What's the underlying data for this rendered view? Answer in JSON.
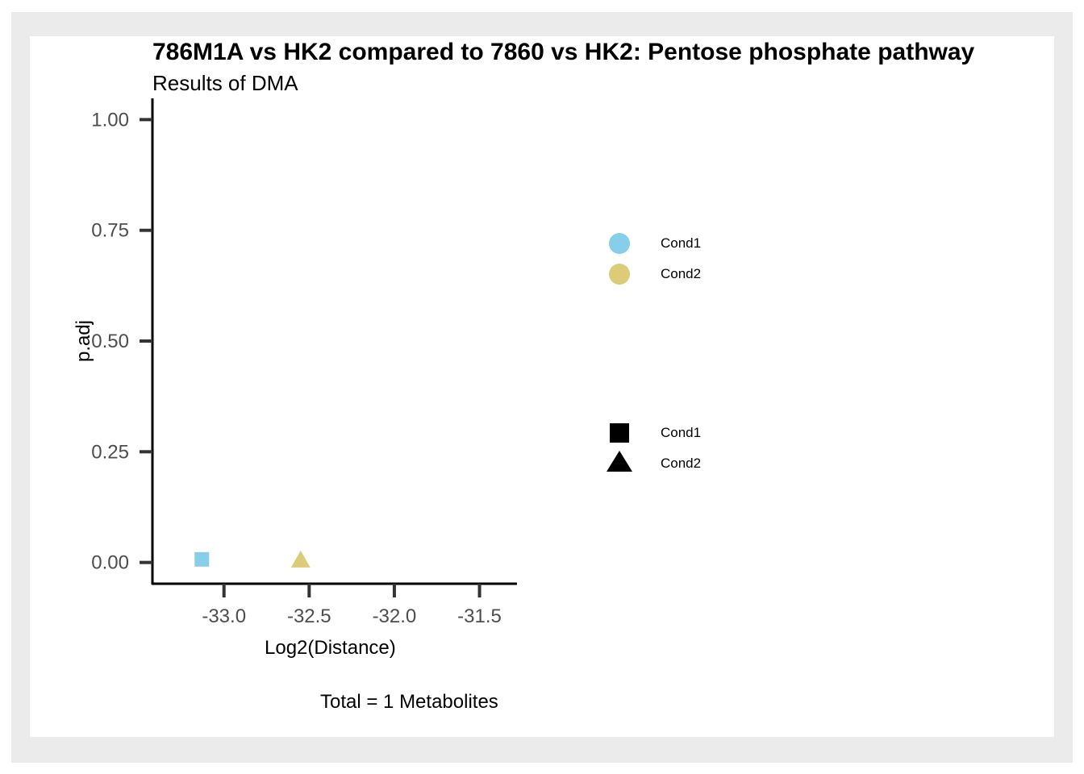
{
  "chart_data": {
    "type": "scatter",
    "title": "786M1A vs HK2 compared to 7860 vs HK2: Pentose phosphate pathway",
    "subtitle": "Results of DMA",
    "xlabel": "Log2(Distance)",
    "ylabel": "p.adj",
    "caption": "Total = 1 Metabolites",
    "xlim": [
      -33.42,
      -31.28
    ],
    "ylim": [
      -0.048,
      1.048
    ],
    "x_ticks": [
      -33.0,
      -32.5,
      -32.0,
      -31.5
    ],
    "x_tick_labels": [
      "-33.0",
      "-32.5",
      "-32.0",
      "-31.5"
    ],
    "y_ticks": [
      0,
      0.25,
      0.5,
      0.75,
      1.0
    ],
    "y_tick_labels": [
      "0.00",
      "0.25",
      "0.50",
      "0.75",
      "1.00"
    ],
    "grid": false,
    "points": [
      {
        "x": -33.13,
        "y": 0.007,
        "color": "#87CEEB",
        "shape": "square",
        "condition": "Cond1"
      },
      {
        "x": -32.55,
        "y": 0.005,
        "color": "#DDCC77",
        "shape": "triangle",
        "condition": "Cond2"
      }
    ],
    "legend_color": {
      "placement": "right",
      "items": [
        {
          "label": "Cond1",
          "color": "#87CEEB"
        },
        {
          "label": "Cond2",
          "color": "#DDCC77"
        }
      ]
    },
    "legend_shape": {
      "placement": "right",
      "items": [
        {
          "label": "Cond1",
          "shape": "square"
        },
        {
          "label": "Cond2",
          "shape": "triangle"
        }
      ]
    }
  }
}
